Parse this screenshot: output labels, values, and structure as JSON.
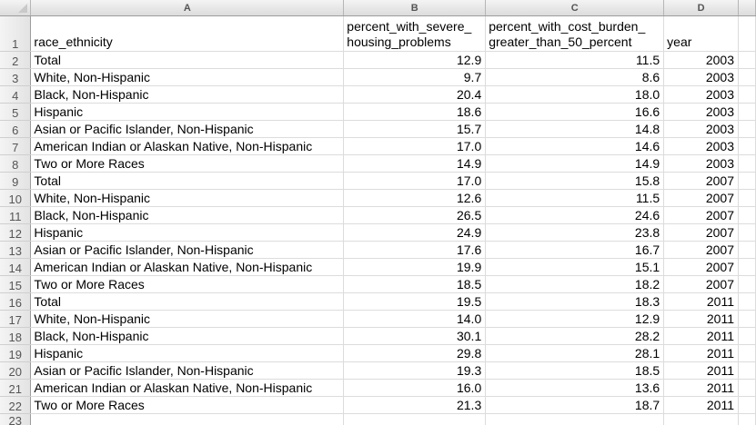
{
  "columns": [
    "A",
    "B",
    "C",
    "D"
  ],
  "header_row_number": "1",
  "headers": {
    "a": "race_ethnicity",
    "b_line1": "percent_with_severe_",
    "b_line2": "housing_problems",
    "c_line1": "percent_with_cost_burden_",
    "c_line2": "greater_than_50_percent",
    "d": "year"
  },
  "rows": [
    {
      "n": "2",
      "race": "Total",
      "severe": "12.9",
      "burden": "11.5",
      "year": "2003"
    },
    {
      "n": "3",
      "race": "White, Non-Hispanic",
      "severe": "9.7",
      "burden": "8.6",
      "year": "2003"
    },
    {
      "n": "4",
      "race": "Black, Non-Hispanic",
      "severe": "20.4",
      "burden": "18.0",
      "year": "2003"
    },
    {
      "n": "5",
      "race": "Hispanic",
      "severe": "18.6",
      "burden": "16.6",
      "year": "2003"
    },
    {
      "n": "6",
      "race": "Asian or Pacific Islander, Non-Hispanic",
      "severe": "15.7",
      "burden": "14.8",
      "year": "2003"
    },
    {
      "n": "7",
      "race": "American Indian or Alaskan Native, Non-Hispanic",
      "severe": "17.0",
      "burden": "14.6",
      "year": "2003"
    },
    {
      "n": "8",
      "race": "Two or More Races",
      "severe": "14.9",
      "burden": "14.9",
      "year": "2003"
    },
    {
      "n": "9",
      "race": "Total",
      "severe": "17.0",
      "burden": "15.8",
      "year": "2007"
    },
    {
      "n": "10",
      "race": "White, Non-Hispanic",
      "severe": "12.6",
      "burden": "11.5",
      "year": "2007"
    },
    {
      "n": "11",
      "race": "Black, Non-Hispanic",
      "severe": "26.5",
      "burden": "24.6",
      "year": "2007"
    },
    {
      "n": "12",
      "race": "Hispanic",
      "severe": "24.9",
      "burden": "23.8",
      "year": "2007"
    },
    {
      "n": "13",
      "race": "Asian or Pacific Islander, Non-Hispanic",
      "severe": "17.6",
      "burden": "16.7",
      "year": "2007"
    },
    {
      "n": "14",
      "race": "American Indian or Alaskan Native, Non-Hispanic",
      "severe": "19.9",
      "burden": "15.1",
      "year": "2007"
    },
    {
      "n": "15",
      "race": "Two or More Races",
      "severe": "18.5",
      "burden": "18.2",
      "year": "2007"
    },
    {
      "n": "16",
      "race": "Total",
      "severe": "19.5",
      "burden": "18.3",
      "year": "2011"
    },
    {
      "n": "17",
      "race": "White, Non-Hispanic",
      "severe": "14.0",
      "burden": "12.9",
      "year": "2011"
    },
    {
      "n": "18",
      "race": "Black, Non-Hispanic",
      "severe": "30.1",
      "burden": "28.2",
      "year": "2011"
    },
    {
      "n": "19",
      "race": "Hispanic",
      "severe": "29.8",
      "burden": "28.1",
      "year": "2011"
    },
    {
      "n": "20",
      "race": "Asian or Pacific Islander, Non-Hispanic",
      "severe": "19.3",
      "burden": "18.5",
      "year": "2011"
    },
    {
      "n": "21",
      "race": "American Indian or Alaskan Native, Non-Hispanic",
      "severe": "16.0",
      "burden": "13.6",
      "year": "2011"
    },
    {
      "n": "22",
      "race": "Two or More Races",
      "severe": "21.3",
      "burden": "18.7",
      "year": "2011"
    }
  ],
  "last_row_number": "23"
}
